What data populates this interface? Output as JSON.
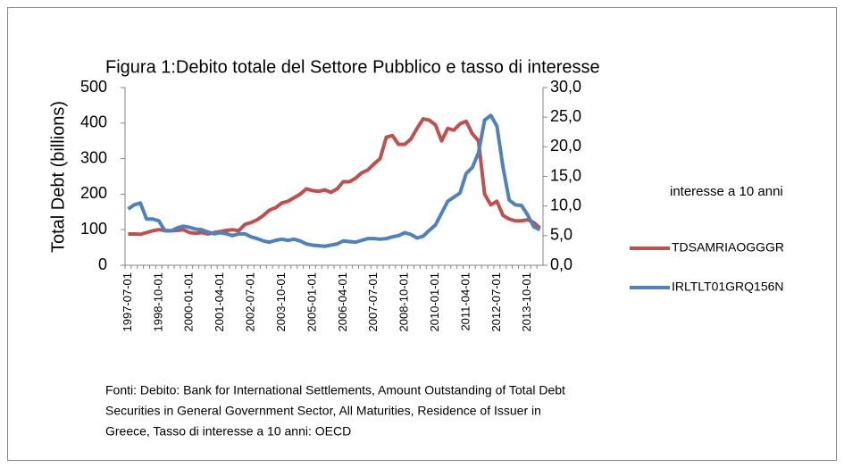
{
  "chart_data": {
    "type": "line",
    "title": "Figura 1:Debito totale del Settore Pubblico e tasso di interesse",
    "y_label": "Total Debt (billions)",
    "y2_label": "interesse a 10 anni",
    "categories": [
      "1997-07-01",
      null,
      null,
      null,
      null,
      "1998-10-01",
      null,
      null,
      null,
      null,
      "2000-01-01",
      null,
      null,
      null,
      null,
      "2001-04-01",
      null,
      null,
      null,
      null,
      "2002-07-01",
      null,
      null,
      null,
      null,
      "2003-10-01",
      null,
      null,
      null,
      null,
      "2005-01-01",
      null,
      null,
      null,
      null,
      "2006-04-01",
      null,
      null,
      null,
      null,
      "2007-07-01",
      null,
      null,
      null,
      null,
      "2008-10-01",
      null,
      null,
      null,
      null,
      "2010-01-01",
      null,
      null,
      null,
      null,
      "2011-04-01",
      null,
      null,
      null,
      null,
      "2012-07-01",
      null,
      null,
      null,
      null,
      "2013-10-01",
      null,
      null
    ],
    "series": [
      {
        "name": "TDSAMRIAOGGGR",
        "color": "#c0504d",
        "axis": "y",
        "values": [
          88,
          88,
          87,
          92,
          97,
          100,
          98,
          97,
          98,
          100,
          92,
          90,
          92,
          88,
          92,
          95,
          98,
          100,
          97,
          115,
          120,
          128,
          140,
          155,
          162,
          175,
          180,
          190,
          200,
          215,
          210,
          208,
          212,
          205,
          215,
          235,
          235,
          245,
          260,
          268,
          285,
          300,
          360,
          365,
          340,
          340,
          355,
          385,
          412,
          408,
          395,
          350,
          385,
          380,
          398,
          405,
          370,
          350,
          200,
          170,
          180,
          140,
          130,
          125,
          125,
          128,
          120,
          105
        ]
      },
      {
        "name": "IRLTLT01GRQ156N",
        "color": "#4f81bd",
        "axis": "y2",
        "values": [
          9.5,
          10.2,
          10.5,
          7.8,
          7.8,
          7.5,
          5.8,
          5.8,
          6.3,
          6.6,
          6.4,
          6.1,
          6.0,
          5.6,
          5.3,
          5.5,
          5.3,
          5.0,
          5.3,
          5.3,
          4.8,
          4.5,
          4.1,
          3.9,
          4.2,
          4.4,
          4.2,
          4.4,
          4.1,
          3.6,
          3.4,
          3.3,
          3.2,
          3.4,
          3.6,
          4.1,
          4.0,
          3.9,
          4.2,
          4.5,
          4.5,
          4.4,
          4.5,
          4.8,
          5.0,
          5.5,
          5.2,
          4.6,
          4.9,
          5.9,
          6.8,
          8.8,
          10.8,
          11.5,
          12.2,
          15.5,
          16.5,
          19.0,
          24.5,
          25.3,
          23.5,
          16.5,
          11.0,
          10.2,
          10.1,
          8.5,
          6.5,
          6.0
        ]
      }
    ],
    "ylim": [
      0,
      500
    ],
    "yticks": [
      0,
      100,
      200,
      300,
      400,
      500
    ],
    "y2lim": [
      0,
      30
    ],
    "y2ticks": [
      {
        "value": 0,
        "label": "0,0"
      },
      {
        "value": 5,
        "label": "5,0"
      },
      {
        "value": 10,
        "label": "10,0"
      },
      {
        "value": 15,
        "label": "15,0"
      },
      {
        "value": 20,
        "label": "20,0"
      },
      {
        "value": 25,
        "label": "25,0"
      },
      {
        "value": 30,
        "label": "30,0"
      }
    ],
    "grid": false,
    "legend": "right",
    "source": [
      "Fonti: Debito: Bank for International Settlements, Amount Outstanding of Total Debt",
      "Securities in General Government Sector, All Maturities, Residence of Issuer in",
      "Greece,  Tasso di interesse  a 10 anni: OECD"
    ]
  }
}
